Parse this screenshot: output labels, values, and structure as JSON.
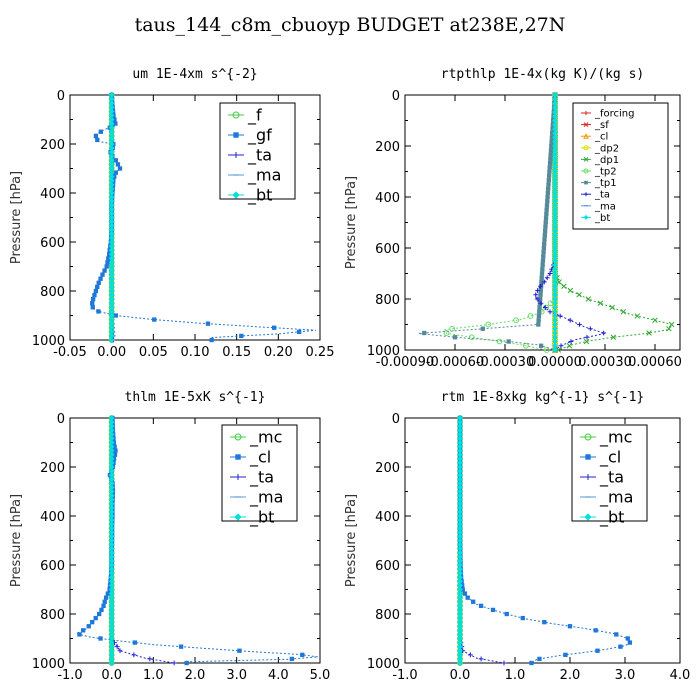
{
  "figure_title": "taus_144_c8m_cbuoyp  BUDGET at238E,27N",
  "chart_data": [
    {
      "type": "line",
      "title": "um   1E-4xm s^{-2}",
      "ylabel": "Pressure [hPa]",
      "xlim": [
        -0.05,
        0.25
      ],
      "ylim": [
        1000,
        0
      ],
      "x_ticks": [
        "-0.05",
        "0.00",
        "0.05",
        "0.10",
        "0.15",
        "0.20",
        "0.25"
      ],
      "x_tick_values": [
        -0.05,
        0,
        0.05,
        0.1,
        0.15,
        0.2,
        0.25
      ],
      "y_ticks": [
        "0",
        "200",
        "400",
        "600",
        "800",
        "1000"
      ],
      "y_tick_values": [
        0,
        200,
        400,
        600,
        800,
        1000
      ],
      "legend_size": "large",
      "legend_placement": "top-right",
      "series": [
        {
          "name": "_f",
          "color": "#44cc44",
          "marker": "circle",
          "pressure": [
            0,
            50,
            100,
            150,
            200,
            250,
            300,
            350,
            400,
            450,
            500,
            550,
            600,
            650,
            700,
            750,
            800,
            850,
            900,
            950,
            1000
          ],
          "values": [
            0,
            0,
            0,
            0,
            0,
            0,
            0,
            0,
            0,
            0,
            0,
            0,
            0,
            0,
            0,
            0,
            0,
            0,
            0,
            0,
            0
          ]
        },
        {
          "name": "_gf",
          "color": "#1f77d8",
          "marker": "square",
          "pressure": [
            0,
            40,
            80,
            110,
            125,
            140,
            160,
            175,
            190,
            200,
            210,
            220,
            240,
            260,
            280,
            300,
            320,
            350,
            400,
            450,
            500,
            550,
            600,
            650,
            700,
            740,
            770,
            800,
            830,
            860,
            880,
            900,
            915,
            930,
            945,
            960,
            975,
            990
          ],
          "values": [
            0,
            0.001,
            0.002,
            0.004,
            0.005,
            -0.008,
            -0.018,
            -0.02,
            -0.015,
            0.002,
            0.004,
            0,
            -0.002,
            0.004,
            0.007,
            0.01,
            0.004,
            0.002,
            0.001,
            0,
            0,
            0,
            -0.001,
            -0.003,
            -0.006,
            -0.012,
            -0.016,
            -0.019,
            -0.022,
            -0.024,
            -0.02,
            0.005,
            0.045,
            0.1,
            0.17,
            0.245,
            0.2,
            0.12
          ]
        },
        {
          "name": "_ta",
          "color": "#2222cc",
          "marker": "plus",
          "pressure": [
            0,
            100,
            200,
            300,
            400,
            500,
            600,
            700,
            800,
            900,
            950,
            1000
          ],
          "values": [
            0,
            0,
            0,
            0,
            0,
            0,
            0,
            0,
            0,
            0,
            0.001,
            0.002
          ]
        },
        {
          "name": "_ma",
          "color": "#5599dd",
          "marker": "dash",
          "pressure": [
            0,
            200,
            400,
            600,
            800,
            1000
          ],
          "values": [
            0,
            0,
            0,
            0,
            0,
            0
          ]
        },
        {
          "name": "_bt",
          "color": "#00e0e0",
          "marker": "diamond",
          "pressure": [
            0,
            100,
            200,
            300,
            400,
            500,
            600,
            700,
            800,
            900,
            1000
          ],
          "values": [
            0,
            0,
            0,
            0,
            0,
            0,
            0,
            0,
            0,
            0,
            0
          ]
        }
      ]
    },
    {
      "type": "line",
      "title": "rtpthlp   1E-4x(kg K)/(kg s)",
      "ylabel": "Pressure [hPa]",
      "xlim": [
        -0.0009,
        0.00075
      ],
      "ylim": [
        1000,
        0
      ],
      "x_ticks": [
        "-0.00090",
        "-0.00060",
        "-0.00030",
        "0.00000",
        "0.00030",
        "0.00060"
      ],
      "x_tick_values": [
        -0.0009,
        -0.0006,
        -0.0003,
        0,
        0.0003,
        0.0006
      ],
      "y_ticks": [
        "0",
        "200",
        "400",
        "600",
        "800",
        "1000"
      ],
      "y_tick_values": [
        0,
        200,
        400,
        600,
        800,
        1000
      ],
      "legend_size": "small",
      "legend_placement": "top-right",
      "series": [
        {
          "name": "_forcing",
          "color": "#dd2222",
          "marker": "plus",
          "pressure": [
            0,
            100,
            200,
            300,
            400,
            500,
            600,
            700,
            800,
            900,
            1000
          ],
          "values": [
            0,
            0,
            0,
            0,
            0,
            0,
            0,
            0,
            0,
            0,
            0
          ]
        },
        {
          "name": "_sf",
          "color": "#dd2222",
          "marker": "x",
          "pressure": [
            0,
            100,
            200,
            300,
            400,
            500,
            600,
            700,
            800,
            900,
            1000
          ],
          "values": [
            0,
            0,
            0,
            0,
            0,
            0,
            0,
            0,
            0,
            0,
            0
          ]
        },
        {
          "name": "_cl",
          "color": "#ee9900",
          "marker": "triangle",
          "pressure": [
            0,
            200,
            400,
            600,
            800,
            1000
          ],
          "values": [
            0,
            0,
            0,
            0,
            0,
            0
          ]
        },
        {
          "name": "_dp2",
          "color": "#dddd00",
          "marker": "circle",
          "pressure": [
            0,
            200,
            400,
            600,
            800,
            1000
          ],
          "values": [
            0,
            0,
            0,
            0,
            0,
            0
          ]
        },
        {
          "name": "_dp1",
          "color": "#33aa33",
          "marker": "x",
          "pressure": [
            0,
            700,
            740,
            770,
            800,
            830,
            860,
            880,
            900,
            920,
            935,
            950,
            965,
            980,
            1000
          ],
          "values": [
            0,
            0,
            3e-05,
            0.0001,
            0.0002,
            0.00033,
            0.00045,
            0.00058,
            0.0007,
            0.00068,
            0.00055,
            0.00035,
            0.0002,
            0.0001,
            2e-05
          ]
        },
        {
          "name": "_tp2",
          "color": "#66dd66",
          "marker": "circle",
          "pressure": [
            0,
            800,
            850,
            880,
            900,
            920,
            935,
            950,
            965,
            980,
            1000
          ],
          "values": [
            0,
            0,
            -8e-05,
            -0.0002,
            -0.0004,
            -0.00066,
            -0.00065,
            -0.0005,
            -0.00035,
            -0.0002,
            -5e-05
          ]
        },
        {
          "name": "_tp1",
          "color": "#558899",
          "marker": "square",
          "pressure": [
            0,
            900,
            920,
            935,
            950,
            965,
            980,
            1000
          ],
          "values": [
            0,
            -0.0001,
            -0.0005,
            -0.00082,
            -0.0006,
            -0.0003,
            -0.0001,
            0
          ]
        },
        {
          "name": "_ta",
          "color": "#2222cc",
          "marker": "plus",
          "pressure": [
            0,
            650,
            700,
            730,
            760,
            790,
            820,
            850,
            880,
            910,
            935,
            960,
            985,
            1000
          ],
          "values": [
            0,
            0,
            -3e-05,
            -6e-05,
            -0.0001,
            -0.00012,
            -8e-05,
            -3e-05,
            8e-05,
            0.00018,
            0.0003,
            0.00012,
            3e-05,
            0
          ]
        },
        {
          "name": "_ma",
          "color": "#5599dd",
          "marker": "dash",
          "pressure": [
            0,
            200,
            400,
            600,
            800,
            1000
          ],
          "values": [
            0,
            0,
            0,
            0,
            0,
            0
          ]
        },
        {
          "name": "_bt",
          "color": "#00e0e0",
          "marker": "diamond",
          "pressure": [
            0,
            200,
            400,
            600,
            800,
            1000
          ],
          "values": [
            0,
            0,
            0,
            0,
            0,
            0
          ]
        }
      ]
    },
    {
      "type": "line",
      "title": "thlm   1E-5xK  s^{-1}",
      "ylabel": "Pressure [hPa]",
      "xlim": [
        -1.0,
        5.0
      ],
      "ylim": [
        1000,
        0
      ],
      "x_ticks": [
        "-1.0",
        "0.0",
        "1.0",
        "2.0",
        "3.0",
        "4.0",
        "5.0"
      ],
      "x_tick_values": [
        -1,
        0,
        1,
        2,
        3,
        4,
        5
      ],
      "y_ticks": [
        "0",
        "200",
        "400",
        "600",
        "800",
        "1000"
      ],
      "y_tick_values": [
        0,
        200,
        400,
        600,
        800,
        1000
      ],
      "legend_size": "large",
      "legend_placement": "top-right",
      "series": [
        {
          "name": "_mc",
          "color": "#44cc44",
          "marker": "circle",
          "pressure": [
            0,
            100,
            200,
            300,
            400,
            500,
            600,
            700,
            800,
            900,
            1000
          ],
          "values": [
            0,
            0,
            0,
            0,
            0,
            0,
            0,
            0,
            0,
            0,
            0
          ]
        },
        {
          "name": "_cl",
          "color": "#1f77d8",
          "marker": "square",
          "pressure": [
            0,
            50,
            100,
            140,
            160,
            190,
            210,
            230,
            260,
            300,
            350,
            400,
            450,
            500,
            550,
            600,
            650,
            700,
            740,
            770,
            800,
            820,
            840,
            860,
            880,
            895,
            910,
            925,
            940,
            955,
            965,
            975,
            985,
            995
          ],
          "values": [
            0.02,
            0.03,
            0.05,
            0.1,
            0.06,
            0.04,
            0.02,
            -0.05,
            0.02,
            0.03,
            0.02,
            0.02,
            0.01,
            0.01,
            0,
            0,
            -0.02,
            -0.05,
            -0.15,
            -0.2,
            -0.3,
            -0.4,
            -0.5,
            -0.6,
            -0.85,
            -0.5,
            0.2,
            1.0,
            2.2,
            3.5,
            4.5,
            4.95,
            4.2,
            1.8
          ]
        },
        {
          "name": "_ta",
          "color": "#2222cc",
          "marker": "plus",
          "pressure": [
            0,
            200,
            400,
            600,
            800,
            900,
            950,
            980,
            1000
          ],
          "values": [
            0,
            0,
            0,
            0,
            0,
            0,
            0.2,
            0.8,
            1.5
          ]
        },
        {
          "name": "_ma",
          "color": "#5599dd",
          "marker": "dash",
          "pressure": [
            0,
            200,
            400,
            600,
            800,
            1000
          ],
          "values": [
            0,
            0,
            0,
            0,
            0,
            0
          ]
        },
        {
          "name": "_bt",
          "color": "#00e0e0",
          "marker": "diamond",
          "pressure": [
            0,
            200,
            400,
            600,
            800,
            1000
          ],
          "values": [
            0,
            0,
            0,
            0,
            0,
            0
          ]
        }
      ]
    },
    {
      "type": "line",
      "title": "rtm   1E-8xkg kg^{-1} s^{-1}",
      "ylabel": "Pressure [hPa]",
      "xlim": [
        -1.0,
        4.0
      ],
      "ylim": [
        1000,
        0
      ],
      "x_ticks": [
        "-1.0",
        "0.0",
        "1.0",
        "2.0",
        "3.0",
        "4.0"
      ],
      "x_tick_values": [
        -1,
        0,
        1,
        2,
        3,
        4
      ],
      "y_ticks": [
        "0",
        "200",
        "400",
        "600",
        "800",
        "1000"
      ],
      "y_tick_values": [
        0,
        200,
        400,
        600,
        800,
        1000
      ],
      "legend_size": "large",
      "legend_placement": "top-right",
      "series": [
        {
          "name": "_mc",
          "color": "#44cc44",
          "marker": "circle",
          "pressure": [
            0,
            100,
            200,
            300,
            400,
            500,
            600,
            700,
            800,
            900,
            1000
          ],
          "values": [
            0,
            0,
            0,
            0,
            0,
            0,
            0,
            0,
            0,
            0,
            0
          ]
        },
        {
          "name": "_cl",
          "color": "#1f77d8",
          "marker": "square",
          "pressure": [
            0,
            100,
            200,
            300,
            400,
            500,
            600,
            650,
            700,
            730,
            760,
            780,
            800,
            820,
            840,
            860,
            880,
            900,
            915,
            930,
            950,
            970,
            985,
            1000
          ],
          "values": [
            0,
            0,
            0,
            0,
            0,
            0,
            0.01,
            0.02,
            0.05,
            0.12,
            0.3,
            0.55,
            0.85,
            1.2,
            1.7,
            2.3,
            2.8,
            3.05,
            3.1,
            3.0,
            2.5,
            1.8,
            1.4,
            1.3
          ]
        },
        {
          "name": "_ta",
          "color": "#2222cc",
          "marker": "plus",
          "pressure": [
            0,
            200,
            400,
            600,
            800,
            900,
            950,
            980,
            1000
          ],
          "values": [
            0,
            0,
            0,
            0,
            0,
            0,
            0.05,
            0.3,
            0.8
          ]
        },
        {
          "name": "_ma",
          "color": "#5599dd",
          "marker": "dash",
          "pressure": [
            0,
            200,
            400,
            600,
            800,
            1000
          ],
          "values": [
            0,
            0,
            0,
            0,
            0,
            0
          ]
        },
        {
          "name": "_bt",
          "color": "#00e0e0",
          "marker": "diamond",
          "pressure": [
            0,
            200,
            400,
            600,
            800,
            1000
          ],
          "values": [
            0,
            0,
            0,
            0,
            0,
            0
          ]
        }
      ]
    }
  ]
}
